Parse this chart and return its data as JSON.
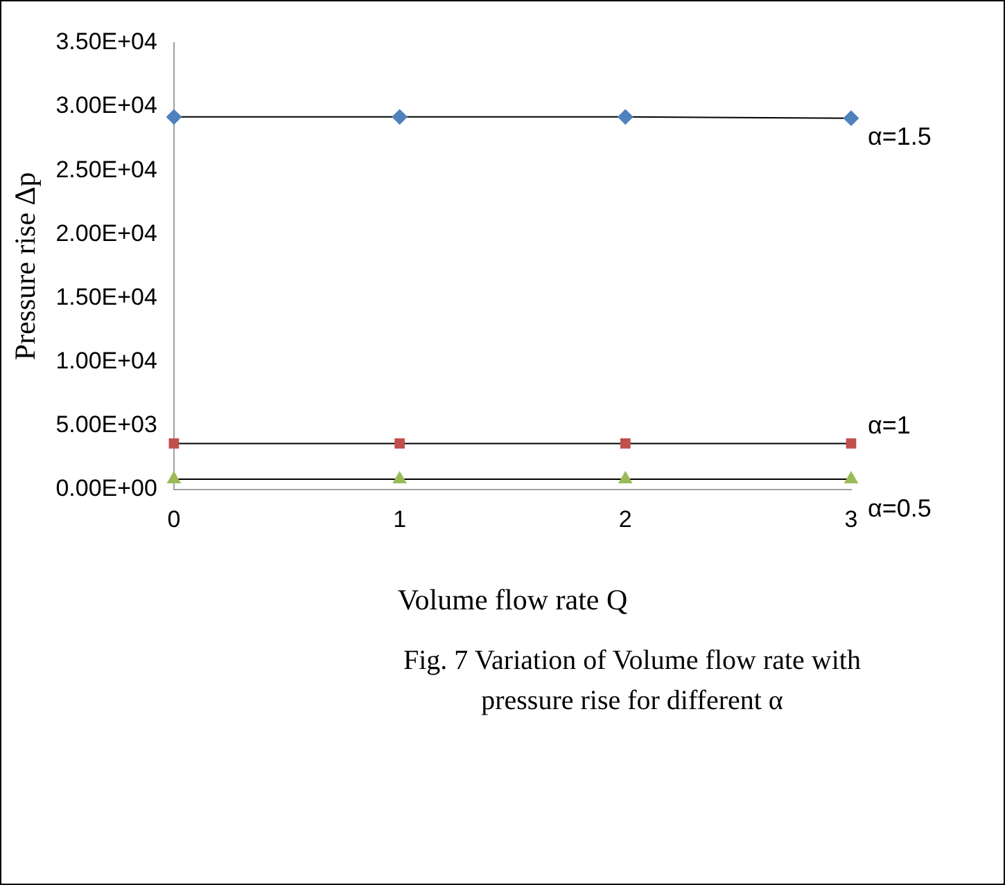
{
  "chart_data": {
    "type": "line",
    "xlabel": "Volume flow rate Q",
    "ylabel": "Pressure rise Δp",
    "categories": [
      "0",
      "1",
      "2",
      "3"
    ],
    "series": [
      {
        "name": "α=1.5",
        "color": "#4f81bd",
        "marker": "diamond",
        "values": [
          29200,
          29200,
          29200,
          29100
        ]
      },
      {
        "name": "α=1",
        "color": "#c0504d",
        "marker": "square",
        "values": [
          3600,
          3600,
          3600,
          3600
        ]
      },
      {
        "name": "α=0.5",
        "color": "#9bbb59",
        "marker": "triangle",
        "values": [
          800,
          800,
          800,
          800
        ]
      }
    ],
    "ylim": [
      0,
      35000
    ],
    "yticks": [
      {
        "value": 0,
        "label": "0.00E+00"
      },
      {
        "value": 5000,
        "label": "5.00E+03"
      },
      {
        "value": 10000,
        "label": "1.00E+04"
      },
      {
        "value": 15000,
        "label": "1.50E+04"
      },
      {
        "value": 20000,
        "label": "2.00E+04"
      },
      {
        "value": 25000,
        "label": "2.50E+04"
      },
      {
        "value": 30000,
        "label": "3.00E+04"
      },
      {
        "value": 35000,
        "label": "3.50E+04"
      }
    ],
    "grid": false,
    "legend": false,
    "line_style": "solid",
    "annotations": [
      "Fig. 7 Variation of Volume flow rate with pressure rise for different α"
    ]
  }
}
